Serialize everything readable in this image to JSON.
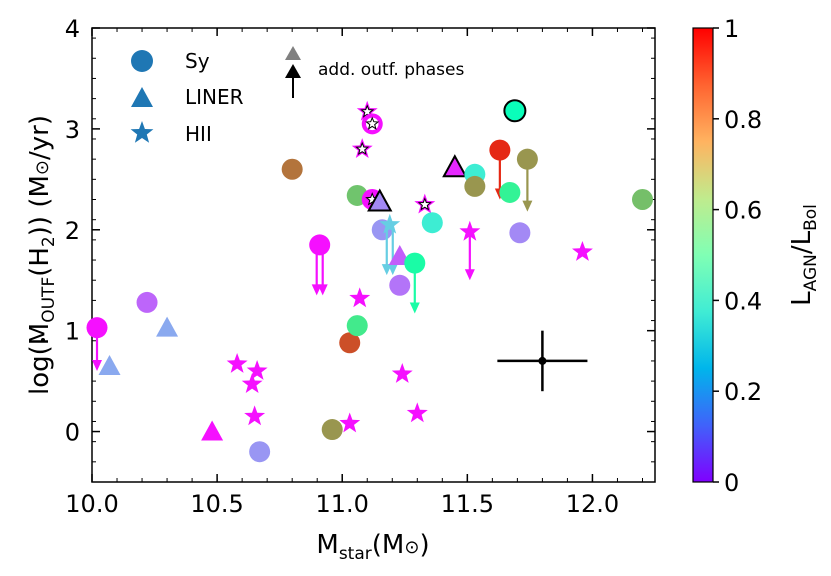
{
  "chart_data": {
    "type": "scatter",
    "xlabel_main": "M",
    "xlabel_sub": "star",
    "xlabel_paren": "(M",
    "xlabel_sun": "⊙",
    "xlabel_end": ")",
    "ylabel": {
      "pre": "log(",
      "mdot": "M",
      "sub1": "OUTF",
      "mid": "(H",
      "sub2": "2",
      "close": ")) (M",
      "sun": "⊙",
      "end": "/yr)"
    },
    "xlim": [
      10.0,
      12.25
    ],
    "ylim": [
      -0.5,
      4.0
    ],
    "x_ticks": [
      10.0,
      10.5,
      11.0,
      11.5,
      12.0
    ],
    "x_tick_labels": [
      "10.0",
      "10.5",
      "11.0",
      "11.5",
      "12.0"
    ],
    "y_ticks": [
      0,
      1,
      2,
      3,
      4
    ],
    "y_tick_labels": [
      "0",
      "1",
      "2",
      "3",
      "4"
    ],
    "colorbar": {
      "colormap": "rainbow",
      "range": [
        0,
        1
      ],
      "ticks": [
        0,
        0.2,
        0.4,
        0.6,
        0.8,
        1
      ],
      "tick_labels": [
        "0",
        "0.2",
        "0.4",
        "0.6",
        "0.8",
        "1"
      ],
      "label_main": "L",
      "label_sub1": "AGN",
      "label_mid": "/L",
      "label_sub2": "Bol"
    },
    "legend": {
      "location": "top-left",
      "entries": [
        {
          "marker": "circle",
          "label": "Sy",
          "color": "#1f77b4"
        },
        {
          "marker": "triangle",
          "label": "LINER",
          "color": "#1f77b4"
        },
        {
          "marker": "star",
          "label": "HII",
          "color": "#1f77b4"
        }
      ],
      "phases_label": "add. outf. phases"
    },
    "error_cross": {
      "x": 11.8,
      "y": 0.7,
      "xerr": 0.18,
      "yerr": 0.3
    },
    "points": [
      {
        "x": 10.02,
        "y": 1.03,
        "c": 0.02,
        "marker": "circle",
        "arrow_to": 0.6
      },
      {
        "x": 10.07,
        "y": 0.65,
        "c": 0.23,
        "marker": "triangle"
      },
      {
        "x": 10.22,
        "y": 1.28,
        "c": 0.13,
        "marker": "circle"
      },
      {
        "x": 10.3,
        "y": 1.03,
        "c": 0.23,
        "marker": "triangle"
      },
      {
        "x": 10.48,
        "y": 0.0,
        "c": 0.02,
        "marker": "triangle"
      },
      {
        "x": 10.58,
        "y": 0.67,
        "c": 0.02,
        "marker": "star"
      },
      {
        "x": 10.64,
        "y": 0.47,
        "c": 0.02,
        "marker": "star"
      },
      {
        "x": 10.66,
        "y": 0.6,
        "c": 0.02,
        "marker": "star"
      },
      {
        "x": 10.65,
        "y": 0.15,
        "c": 0.02,
        "marker": "star"
      },
      {
        "x": 10.67,
        "y": -0.2,
        "c": 0.2,
        "marker": "circle"
      },
      {
        "x": 10.8,
        "y": 2.6,
        "c": 0.85,
        "marker": "circle"
      },
      {
        "x": 10.91,
        "y": 1.85,
        "c": 0.02,
        "marker": "circle",
        "arrow_to": 1.35,
        "double_arrow": true
      },
      {
        "x": 10.96,
        "y": 0.02,
        "c": 0.8,
        "marker": "circle"
      },
      {
        "x": 11.03,
        "y": 0.88,
        "c": 0.9,
        "marker": "circle"
      },
      {
        "x": 11.03,
        "y": 0.08,
        "c": 0.02,
        "marker": "star"
      },
      {
        "x": 11.06,
        "y": 1.05,
        "c": 0.63,
        "marker": "circle"
      },
      {
        "x": 11.07,
        "y": 1.32,
        "c": 0.02,
        "marker": "star"
      },
      {
        "x": 11.06,
        "y": 2.34,
        "c": 0.72,
        "marker": "circle"
      },
      {
        "x": 11.08,
        "y": 2.8,
        "c": 0.02,
        "marker": "star",
        "white_star": true
      },
      {
        "x": 11.1,
        "y": 3.17,
        "c": 0.02,
        "marker": "star",
        "white_star": true
      },
      {
        "x": 11.12,
        "y": 3.05,
        "c": 0.02,
        "marker": "circle",
        "ring": true,
        "white_star": true
      },
      {
        "x": 11.12,
        "y": 2.3,
        "c": 0.02,
        "marker": "circle",
        "white_star": true
      },
      {
        "x": 11.15,
        "y": 2.28,
        "c": 0.18,
        "marker": "triangle",
        "outlined": true
      },
      {
        "x": 11.16,
        "y": 2.0,
        "c": 0.2,
        "marker": "circle"
      },
      {
        "x": 11.19,
        "y": 2.05,
        "c": 0.3,
        "marker": "star",
        "arrow_to": 1.55,
        "double_arrow": true
      },
      {
        "x": 11.23,
        "y": 1.74,
        "c": 0.12,
        "marker": "triangle"
      },
      {
        "x": 11.23,
        "y": 1.45,
        "c": 0.15,
        "marker": "circle"
      },
      {
        "x": 11.24,
        "y": 0.57,
        "c": 0.02,
        "marker": "star"
      },
      {
        "x": 11.29,
        "y": 1.67,
        "c": 0.55,
        "marker": "circle",
        "arrow_to": 1.17
      },
      {
        "x": 11.3,
        "y": 0.18,
        "c": 0.02,
        "marker": "star"
      },
      {
        "x": 11.33,
        "y": 2.25,
        "c": 0.02,
        "marker": "star",
        "white_star": true
      },
      {
        "x": 11.36,
        "y": 2.07,
        "c": 0.38,
        "marker": "circle"
      },
      {
        "x": 11.45,
        "y": 2.62,
        "c": 0.05,
        "marker": "triangle",
        "outlined": true
      },
      {
        "x": 11.51,
        "y": 1.98,
        "c": 0.02,
        "marker": "star",
        "arrow_to": 1.5
      },
      {
        "x": 11.53,
        "y": 2.55,
        "c": 0.38,
        "marker": "circle"
      },
      {
        "x": 11.53,
        "y": 2.43,
        "c": 0.8,
        "marker": "circle"
      },
      {
        "x": 11.63,
        "y": 2.79,
        "c": 0.95,
        "marker": "circle",
        "arrow_to": 2.3
      },
      {
        "x": 11.67,
        "y": 2.37,
        "c": 0.6,
        "marker": "circle"
      },
      {
        "x": 11.69,
        "y": 3.18,
        "c": 0.48,
        "marker": "circle",
        "outlined": true
      },
      {
        "x": 11.71,
        "y": 1.97,
        "c": 0.18,
        "marker": "circle"
      },
      {
        "x": 11.74,
        "y": 2.7,
        "c": 0.8,
        "marker": "circle",
        "arrow_to": 2.18
      },
      {
        "x": 11.96,
        "y": 1.78,
        "c": 0.02,
        "marker": "star"
      },
      {
        "x": 12.2,
        "y": 2.3,
        "c": 0.73,
        "marker": "circle"
      }
    ]
  }
}
